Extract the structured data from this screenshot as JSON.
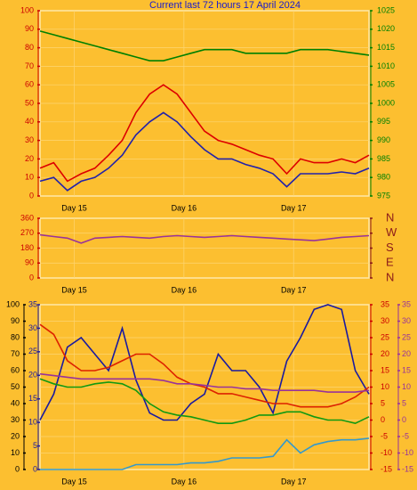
{
  "chart_data": [
    {
      "type": "line",
      "title": "Current last 72 hours 17 April 2024",
      "x": [
        0,
        3,
        6,
        9,
        12,
        15,
        18,
        21,
        24,
        27,
        30,
        33,
        36,
        39,
        42,
        45,
        48,
        51,
        54,
        57,
        60,
        63,
        66,
        69,
        72
      ],
      "xlim": [
        0,
        72
      ],
      "xticks": [
        {
          "value": 7.5,
          "label": "Day 15"
        },
        {
          "value": 31.5,
          "label": "Day 16"
        },
        {
          "value": 55.5,
          "label": "Day 17"
        }
      ],
      "ylim": [
        0,
        100
      ],
      "yticks": [
        0,
        10,
        20,
        30,
        40,
        50,
        60,
        70,
        80,
        90,
        100
      ],
      "ycolor": "#cc0000",
      "y2lim": [
        975,
        1025
      ],
      "y2ticks": [
        975,
        980,
        985,
        990,
        995,
        1000,
        1005,
        1010,
        1015,
        1020,
        1025
      ],
      "y2color": "#008000",
      "grid": true,
      "series": [
        {
          "color": "#dd0000",
          "values": [
            15,
            18,
            8,
            12,
            15,
            22,
            30,
            45,
            55,
            60,
            55,
            45,
            35,
            30,
            28,
            25,
            22,
            20,
            12,
            20,
            18,
            18,
            20,
            18,
            22
          ]
        },
        {
          "color": "#2222aa",
          "values": [
            8,
            10,
            3,
            8,
            10,
            15,
            22,
            33,
            40,
            45,
            40,
            32,
            25,
            20,
            20,
            17,
            15,
            12,
            5,
            12,
            12,
            12,
            13,
            12,
            15
          ]
        },
        {
          "color": "#008000",
          "axis": "y2",
          "values": [
            1019.5,
            1018.5,
            1017.5,
            1016.5,
            1015.5,
            1014.5,
            1013.5,
            1012.5,
            1011.5,
            1011.5,
            1012.5,
            1013.5,
            1014.5,
            1014.5,
            1014.5,
            1013.5,
            1013.5,
            1013.5,
            1013.5,
            1014.5,
            1014.5,
            1014.5,
            1014,
            1013.5,
            1013
          ]
        }
      ]
    },
    {
      "type": "line",
      "x": [
        0,
        3,
        6,
        9,
        12,
        15,
        18,
        21,
        24,
        27,
        30,
        33,
        36,
        39,
        42,
        45,
        48,
        51,
        54,
        57,
        60,
        63,
        66,
        69,
        72
      ],
      "xlim": [
        0,
        72
      ],
      "xticks": [
        {
          "value": 7.5,
          "label": "Day 15"
        },
        {
          "value": 31.5,
          "label": "Day 16"
        },
        {
          "value": 55.5,
          "label": "Day 17"
        }
      ],
      "ylim": [
        0,
        360
      ],
      "yticks": [
        0,
        90,
        180,
        270,
        360
      ],
      "ycolor": "#cc0000",
      "y2lim": [
        0,
        360
      ],
      "y2ticks": [
        {
          "value": 360,
          "label": "N"
        },
        {
          "value": 270,
          "label": "W"
        },
        {
          "value": 180,
          "label": "S"
        },
        {
          "value": 90,
          "label": "E"
        },
        {
          "value": 0,
          "label": "N"
        }
      ],
      "y2color": "#8b1a1a",
      "grid": true,
      "series": [
        {
          "color": "#993399",
          "values": [
            260,
            250,
            240,
            210,
            240,
            245,
            250,
            245,
            240,
            250,
            255,
            250,
            245,
            250,
            255,
            250,
            245,
            240,
            235,
            230,
            225,
            235,
            245,
            250,
            255
          ]
        }
      ]
    },
    {
      "type": "line",
      "x": [
        0,
        3,
        6,
        9,
        12,
        15,
        18,
        21,
        24,
        27,
        30,
        33,
        36,
        39,
        42,
        45,
        48,
        51,
        54,
        57,
        60,
        63,
        66,
        69,
        72
      ],
      "xlim": [
        0,
        72
      ],
      "xticks": [
        {
          "value": 7.5,
          "label": "Day 15"
        },
        {
          "value": 31.5,
          "label": "Day 16"
        },
        {
          "value": 55.5,
          "label": "Day 17"
        }
      ],
      "ylim": [
        0,
        100
      ],
      "yticks": [
        0,
        10,
        20,
        30,
        40,
        50,
        60,
        70,
        80,
        90,
        100
      ],
      "ycolor": "#000000",
      "y3lim": [
        0,
        35
      ],
      "y3ticks": [
        0,
        5,
        10,
        15,
        20,
        25,
        30,
        35
      ],
      "y3color": "#1a1aa0",
      "y2lim": [
        -15,
        35
      ],
      "y2ticks": [
        -15,
        -10,
        -5,
        0,
        5,
        10,
        15,
        20,
        25,
        30,
        35
      ],
      "y2color": "#cc0000",
      "y4lim": [
        -15,
        35
      ],
      "y4ticks": [
        -15,
        -10,
        -5,
        0,
        5,
        10,
        15,
        20,
        25,
        30,
        35
      ],
      "y4color": "#993399",
      "grid": true,
      "series": [
        {
          "color": "#1a1aa0",
          "axis": "y3",
          "values": [
            10.5,
            16,
            26,
            28,
            24.5,
            21,
            30,
            19,
            12,
            10.5,
            10.5,
            14,
            16,
            24.5,
            21,
            21,
            17.5,
            12,
            23,
            28,
            34,
            35,
            34,
            21,
            16
          ]
        },
        {
          "color": "#dd2200",
          "axis": "y2",
          "values": [
            29,
            26,
            18,
            15,
            15,
            16,
            18,
            20,
            20,
            17,
            13,
            11,
            10,
            8,
            8,
            7,
            6,
            5,
            5,
            4,
            4,
            4,
            5,
            7,
            10
          ]
        },
        {
          "color": "#119911",
          "values": [
            55,
            52,
            50,
            50,
            52,
            53,
            52,
            48,
            40,
            35,
            33,
            32,
            30,
            28,
            28,
            30,
            33,
            33,
            35,
            35,
            32,
            30,
            30,
            28,
            32
          ]
        },
        {
          "color": "#993399",
          "axis": "y4",
          "values": [
            14,
            13.5,
            13,
            12.5,
            12.5,
            12.5,
            12.5,
            12.5,
            12.5,
            12,
            11,
            11,
            10.5,
            10,
            10,
            9.5,
            9.5,
            9,
            9,
            9,
            9,
            8.5,
            8.5,
            8.5,
            9
          ]
        },
        {
          "color": "#3399cc",
          "values": [
            0,
            0,
            0,
            0,
            0,
            0,
            0,
            3,
            3,
            3,
            3,
            4,
            4,
            5,
            7,
            7,
            7,
            8,
            18,
            10,
            15,
            17,
            18,
            18,
            19
          ]
        }
      ]
    }
  ]
}
